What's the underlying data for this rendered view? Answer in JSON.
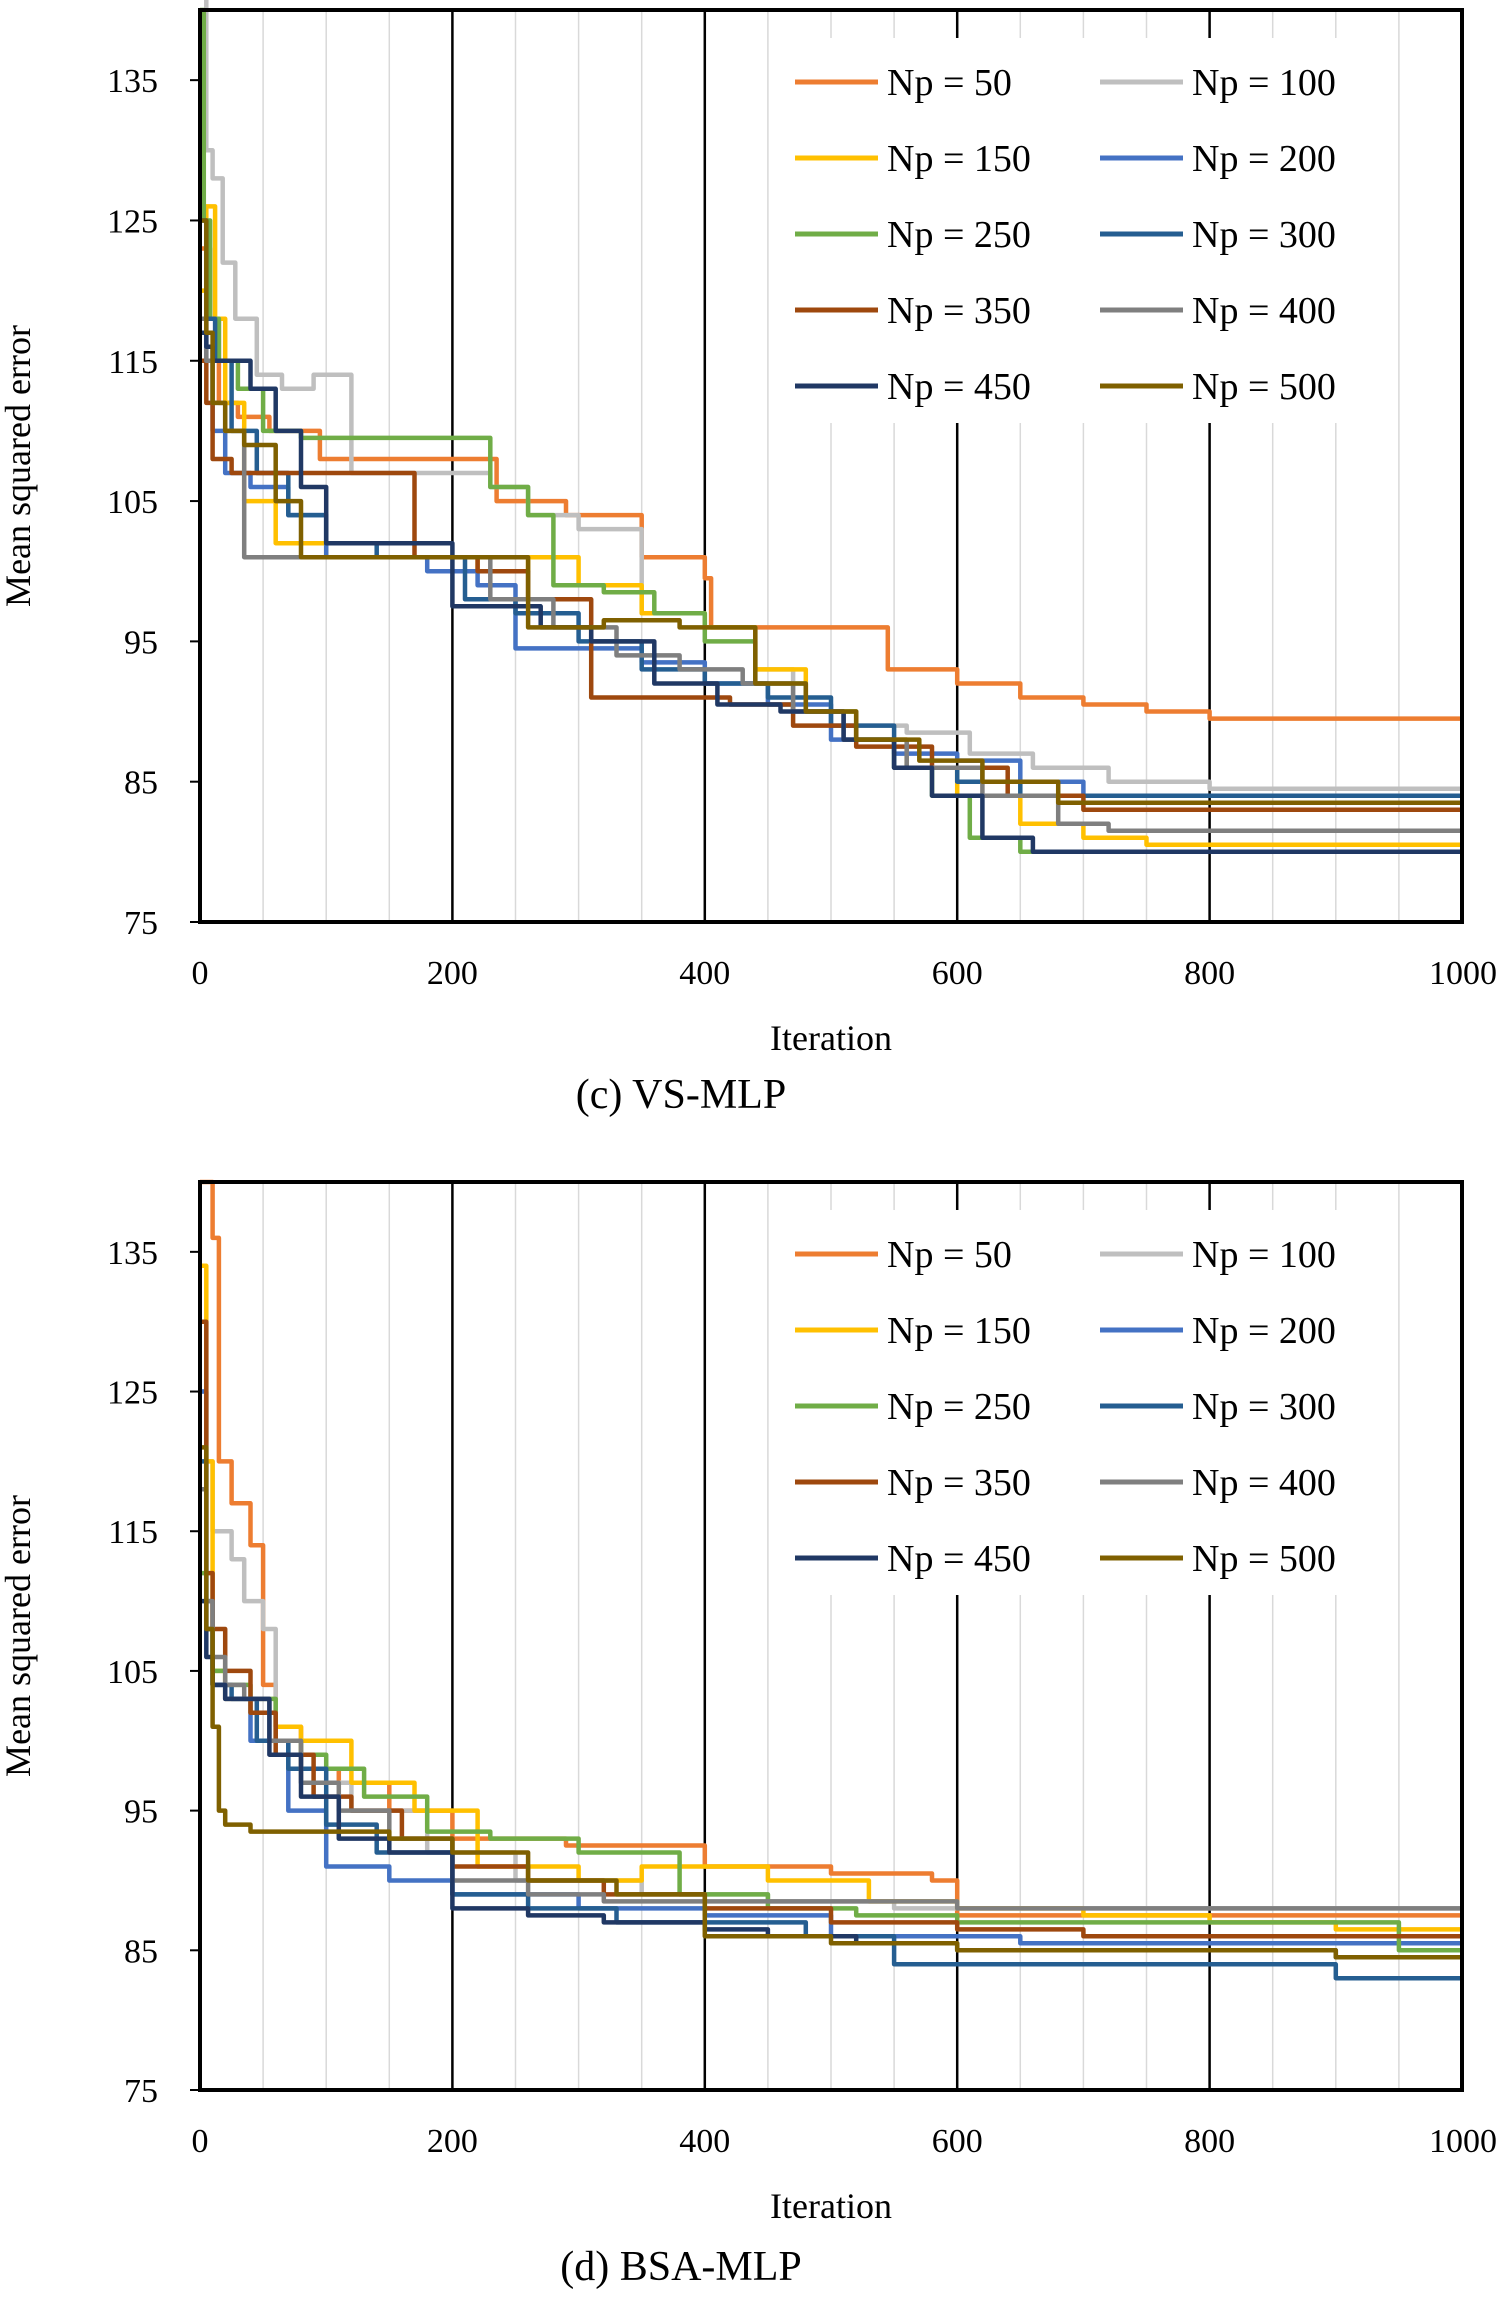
{
  "figure": {
    "series_names": [
      "Np = 50",
      "Np = 100",
      "Np = 150",
      "Np = 200",
      "Np = 250",
      "Np = 300",
      "Np = 350",
      "Np = 400",
      "Np = 450",
      "Np = 500"
    ],
    "series_colors": [
      "#ED7D31",
      "#BFBFBF",
      "#FFC000",
      "#4472C4",
      "#70AD47",
      "#255E91",
      "#9E480E",
      "#7F7F7F",
      "#203864",
      "#7F6000"
    ]
  },
  "chart_data": [
    {
      "type": "line",
      "caption": "(c) VS-MLP",
      "xlabel": "Iteration",
      "ylabel": "Mean squared error",
      "xlim": [
        0,
        1000
      ],
      "ylim": [
        75,
        140
      ],
      "xticks": [
        0,
        200,
        400,
        600,
        800,
        1000
      ],
      "yticks": [
        75,
        85,
        95,
        105,
        115,
        125,
        135
      ],
      "series": [
        {
          "name": "Np = 50",
          "x": [
            0,
            8,
            15,
            30,
            55,
            95,
            190,
            235,
            290,
            330,
            350,
            390,
            400,
            405,
            470,
            545,
            600,
            650,
            700,
            750,
            800,
            1000
          ],
          "y": [
            123,
            118,
            112,
            111,
            110,
            108,
            108,
            105,
            104,
            104,
            101,
            101,
            99.5,
            96,
            96,
            93,
            92,
            91,
            90.5,
            90,
            89.5,
            89.5
          ]
        },
        {
          "name": "Np = 100",
          "x": [
            0,
            5,
            10,
            18,
            28,
            45,
            65,
            90,
            120,
            170,
            230,
            260,
            300,
            350,
            400,
            440,
            470,
            510,
            560,
            610,
            660,
            720,
            800,
            1000
          ],
          "y": [
            142,
            130,
            128,
            122,
            118,
            114,
            113,
            114,
            107,
            107,
            106,
            104,
            103,
            97,
            96,
            93,
            90,
            89,
            88.5,
            87,
            86,
            85,
            84.5,
            84.5
          ]
        },
        {
          "name": "Np = 150",
          "x": [
            0,
            5,
            12,
            20,
            35,
            60,
            100,
            160,
            220,
            260,
            300,
            350,
            400,
            440,
            480,
            520,
            560,
            600,
            650,
            700,
            750,
            1000
          ],
          "y": [
            120,
            126,
            118,
            112,
            105,
            102,
            101,
            101,
            100,
            101,
            99,
            97,
            96,
            93,
            90,
            88,
            86,
            84,
            82,
            81,
            80.5,
            80.5
          ]
        },
        {
          "name": "Np = 200",
          "x": [
            0,
            5,
            10,
            20,
            40,
            70,
            100,
            140,
            180,
            200,
            220,
            250,
            300,
            350,
            400,
            450,
            500,
            550,
            600,
            650,
            700,
            1000
          ],
          "y": [
            118,
            115,
            110,
            107,
            106,
            104,
            101,
            101,
            100,
            100,
            99,
            94.5,
            94.5,
            93.5,
            92,
            90.5,
            88,
            87,
            86.5,
            85,
            84,
            84
          ]
        },
        {
          "name": "Np = 250",
          "x": [
            0,
            3,
            8,
            15,
            30,
            50,
            80,
            120,
            200,
            230,
            260,
            280,
            320,
            360,
            400,
            440,
            480,
            520,
            550,
            580,
            610,
            650,
            1000
          ],
          "y": [
            140,
            125,
            118,
            115,
            113,
            110,
            109.5,
            109.5,
            109.5,
            106,
            104,
            99,
            98.5,
            97,
            95,
            92,
            90,
            88,
            86,
            84,
            81,
            80,
            80
          ]
        },
        {
          "name": "Np = 300",
          "x": [
            0,
            5,
            12,
            25,
            45,
            70,
            100,
            140,
            180,
            210,
            250,
            300,
            350,
            400,
            450,
            500,
            550,
            600,
            650,
            1000
          ],
          "y": [
            125,
            118,
            115,
            110,
            107,
            104,
            102,
            101,
            101,
            98,
            97,
            95,
            93,
            92,
            91,
            89,
            86,
            85,
            84,
            84
          ]
        },
        {
          "name": "Np = 350",
          "x": [
            0,
            5,
            10,
            25,
            50,
            80,
            150,
            170,
            190,
            220,
            260,
            310,
            360,
            420,
            470,
            520,
            580,
            640,
            700,
            1000
          ],
          "y": [
            115,
            112,
            108,
            107,
            107,
            107,
            107,
            101,
            101,
            100,
            98,
            91,
            91,
            90.5,
            89,
            87.5,
            86,
            84,
            83,
            83
          ]
        },
        {
          "name": "Np = 400",
          "x": [
            0,
            5,
            10,
            20,
            35,
            60,
            90,
            130,
            180,
            230,
            280,
            330,
            380,
            430,
            470,
            510,
            560,
            620,
            680,
            720,
            1000
          ],
          "y": [
            118,
            115,
            112,
            110,
            101,
            101,
            101,
            101,
            101,
            98,
            96,
            94,
            93,
            92,
            90,
            88,
            86,
            84,
            82,
            81.5,
            81.5
          ]
        },
        {
          "name": "Np = 450",
          "x": [
            0,
            5,
            10,
            15,
            25,
            40,
            60,
            80,
            100,
            120,
            140,
            170,
            200,
            230,
            270,
            310,
            360,
            410,
            460,
            510,
            550,
            580,
            620,
            660,
            700,
            1000
          ],
          "y": [
            117,
            116,
            115,
            115,
            115,
            113,
            110,
            106,
            102,
            102,
            102,
            102,
            97.5,
            97.5,
            96,
            95,
            92,
            90.5,
            90,
            88,
            86,
            84,
            81,
            80,
            80,
            80
          ]
        },
        {
          "name": "Np = 500",
          "x": [
            0,
            5,
            10,
            20,
            35,
            60,
            80,
            120,
            170,
            210,
            260,
            320,
            380,
            440,
            480,
            520,
            570,
            620,
            680,
            1000
          ],
          "y": [
            125,
            117,
            112,
            110,
            109,
            105,
            101,
            101,
            101,
            101,
            96,
            96.5,
            96,
            92,
            90,
            88,
            86.5,
            85,
            83.5,
            83.5
          ]
        }
      ],
      "legend": {
        "position": "top-right",
        "columns": 2
      }
    },
    {
      "type": "line",
      "caption": "(d) BSA-MLP",
      "xlabel": "Iteration",
      "ylabel": "Mean squared error",
      "xlim": [
        0,
        1000
      ],
      "ylim": [
        75,
        140
      ],
      "xticks": [
        0,
        200,
        400,
        600,
        800,
        1000
      ],
      "yticks": [
        75,
        85,
        95,
        105,
        115,
        125,
        135
      ],
      "series": [
        {
          "name": "Np = 50",
          "x": [
            0,
            5,
            10,
            15,
            25,
            40,
            50,
            60,
            80,
            110,
            150,
            200,
            290,
            400,
            500,
            580,
            600,
            800,
            1000
          ],
          "y": [
            140,
            140,
            136,
            120,
            117,
            114,
            104,
            101,
            98,
            97,
            95,
            93,
            92.5,
            91,
            90.5,
            90,
            87.5,
            87.5,
            87.5
          ]
        },
        {
          "name": "Np = 100",
          "x": [
            0,
            5,
            10,
            25,
            35,
            50,
            60,
            80,
            120,
            180,
            250,
            350,
            450,
            550,
            600,
            650,
            800,
            1000
          ],
          "y": [
            125,
            120,
            115,
            113,
            110,
            108,
            100,
            97,
            95,
            92,
            90,
            89,
            88.5,
            88,
            88,
            88,
            88,
            88
          ]
        },
        {
          "name": "Np = 150",
          "x": [
            0,
            5,
            10,
            20,
            40,
            60,
            80,
            120,
            170,
            220,
            300,
            350,
            450,
            530,
            600,
            700,
            800,
            900,
            1000
          ],
          "y": [
            134,
            120,
            105,
            103,
            102,
            101,
            100,
            97,
            95,
            91,
            90,
            91,
            90,
            88.5,
            88,
            87.5,
            87,
            86.5,
            86.5
          ]
        },
        {
          "name": "Np = 200",
          "x": [
            0,
            5,
            10,
            20,
            40,
            70,
            100,
            150,
            200,
            300,
            400,
            500,
            580,
            650,
            750,
            900,
            1000
          ],
          "y": [
            125,
            110,
            104,
            103,
            100,
            95,
            91,
            90,
            89,
            88,
            87.5,
            86,
            86,
            85.5,
            85.5,
            85.5,
            85.5
          ]
        },
        {
          "name": "Np = 250",
          "x": [
            0,
            5,
            10,
            20,
            40,
            60,
            80,
            100,
            130,
            180,
            230,
            300,
            380,
            450,
            520,
            600,
            700,
            800,
            900,
            950,
            1000
          ],
          "y": [
            112,
            108,
            105,
            104,
            103,
            100,
            99,
            98,
            96,
            93.5,
            93,
            92,
            89,
            88,
            87.5,
            87,
            87,
            87,
            87,
            85,
            85
          ]
        },
        {
          "name": "Np = 300",
          "x": [
            0,
            5,
            10,
            25,
            45,
            70,
            100,
            140,
            200,
            260,
            330,
            400,
            480,
            550,
            600,
            650,
            700,
            800,
            900,
            1000
          ],
          "y": [
            120,
            108,
            104,
            103,
            100,
            98,
            94,
            92,
            89,
            88,
            87,
            87,
            86,
            84,
            84,
            84,
            84,
            84,
            83,
            83
          ]
        },
        {
          "name": "Np = 350",
          "x": [
            0,
            5,
            10,
            20,
            40,
            60,
            90,
            120,
            160,
            200,
            260,
            320,
            400,
            500,
            600,
            700,
            800,
            900,
            1000
          ],
          "y": [
            130,
            112,
            108,
            105,
            102,
            99,
            96,
            95,
            93,
            91,
            90,
            89,
            88,
            87,
            86.5,
            86,
            86,
            86,
            86
          ]
        },
        {
          "name": "Np = 400",
          "x": [
            0,
            5,
            10,
            20,
            35,
            55,
            80,
            110,
            150,
            200,
            260,
            320,
            400,
            500,
            600,
            700,
            800,
            1000
          ],
          "y": [
            118,
            110,
            106,
            104,
            103,
            100,
            97,
            95,
            93,
            90,
            89,
            88.5,
            88.5,
            88.5,
            88,
            88,
            88,
            88
          ]
        },
        {
          "name": "Np = 450",
          "x": [
            0,
            5,
            10,
            20,
            35,
            55,
            80,
            110,
            150,
            200,
            260,
            320,
            400,
            450,
            520,
            600,
            700,
            800,
            900,
            1000
          ],
          "y": [
            110,
            106,
            104,
            103,
            103,
            99,
            96,
            93,
            92,
            88,
            87.5,
            87,
            86.5,
            86,
            85.5,
            85,
            85,
            85,
            84.5,
            84.5
          ]
        },
        {
          "name": "Np = 500",
          "x": [
            0,
            5,
            10,
            15,
            20,
            40,
            60,
            100,
            150,
            200,
            260,
            330,
            390,
            400,
            500,
            600,
            700,
            800,
            900,
            1000
          ],
          "y": [
            121,
            108,
            101,
            95,
            94,
            93.5,
            93.5,
            93.5,
            93,
            92,
            90,
            89,
            89,
            86,
            85.5,
            85,
            85,
            85,
            84.5,
            84.5
          ]
        }
      ],
      "legend": {
        "position": "top-right",
        "columns": 2
      }
    }
  ]
}
